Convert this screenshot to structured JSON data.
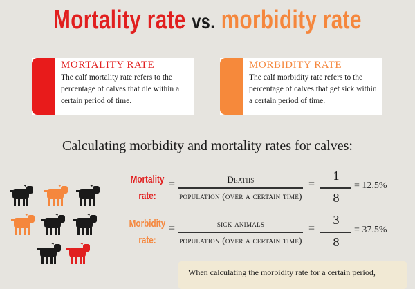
{
  "title": {
    "part1": "Mortality rate",
    "part2": "vs.",
    "part3": "morbidity rate"
  },
  "cards": [
    {
      "heading": "MORTALITY RATE",
      "text": "The calf mortality rate refers to the percentage of calves that die within a certain period of time."
    },
    {
      "heading": "MORBIDITY RATE",
      "text": "The calf morbidity rate refers to the percentage of calves that get sick within a certain period of time."
    }
  ],
  "calc_title": "Calculating morbidity and mortality rates for calves:",
  "formulas": [
    {
      "label_line1": "Mortality",
      "label_line2": "rate:",
      "eq": "=",
      "numerator": "Deaths",
      "denominator": "population (over a certain time)",
      "eq2": "=",
      "n1": "1",
      "n2": "8",
      "result": "=  12.5%"
    },
    {
      "label_line1": "Morbidity",
      "label_line2": "rate:",
      "eq": "=",
      "numerator": "sick animals",
      "denominator": "population (over a certain time)",
      "eq2": "=",
      "n1": "3",
      "n2": "8",
      "result": "=  37.5%"
    }
  ],
  "note": "When calculating the morbidity rate for a certain period,",
  "colors": {
    "mortality": "#e11f1f",
    "morbidity": "#f5873d",
    "healthy": "#1a1a1a"
  },
  "calves": [
    "black",
    "orange",
    "black",
    "orange",
    "black",
    "black",
    "black",
    "red"
  ]
}
